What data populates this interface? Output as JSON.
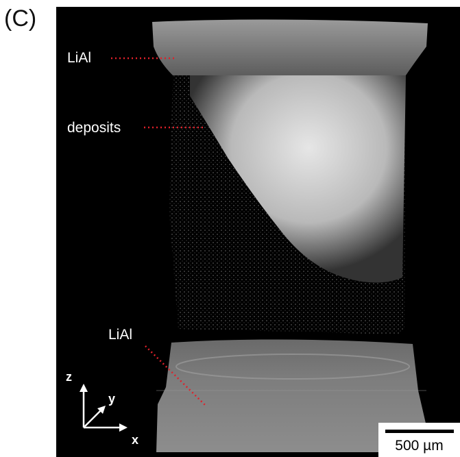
{
  "panel_label": "(C)",
  "annotations": {
    "top_label": "LiAl",
    "middle_label": "deposits",
    "bottom_label": "LiAl"
  },
  "axes": {
    "z": "z",
    "y": "y",
    "x": "x"
  },
  "scale_bar": {
    "text": "500 µm"
  },
  "colors": {
    "background": "#000000",
    "leader": "#e0202a",
    "electrode": "#8a8a8a",
    "deposit": "#d9d9d9"
  }
}
